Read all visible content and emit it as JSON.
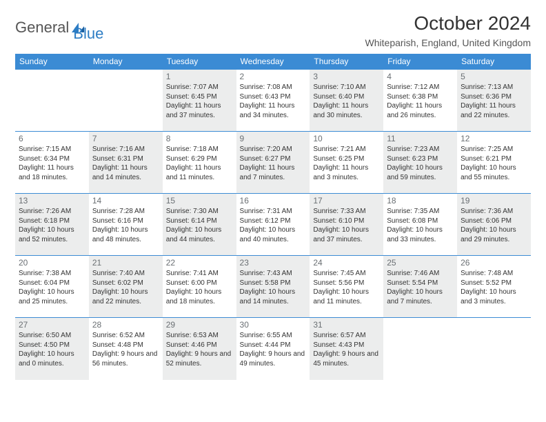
{
  "logo": {
    "text1": "General",
    "text2": "Blue"
  },
  "title": "October 2024",
  "location": "Whiteparish, England, United Kingdom",
  "colors": {
    "header_blue": "#3b8bd4",
    "shaded_bg": "#eceded",
    "logo_blue": "#2d7dc4"
  },
  "dayHeaders": [
    "Sunday",
    "Monday",
    "Tuesday",
    "Wednesday",
    "Thursday",
    "Friday",
    "Saturday"
  ],
  "weeks": [
    [
      {
        "empty": true
      },
      {
        "empty": true
      },
      {
        "num": "1",
        "shaded": true,
        "sunrise": "Sunrise: 7:07 AM",
        "sunset": "Sunset: 6:45 PM",
        "daylight": "Daylight: 11 hours and 37 minutes."
      },
      {
        "num": "2",
        "sunrise": "Sunrise: 7:08 AM",
        "sunset": "Sunset: 6:43 PM",
        "daylight": "Daylight: 11 hours and 34 minutes."
      },
      {
        "num": "3",
        "shaded": true,
        "sunrise": "Sunrise: 7:10 AM",
        "sunset": "Sunset: 6:40 PM",
        "daylight": "Daylight: 11 hours and 30 minutes."
      },
      {
        "num": "4",
        "sunrise": "Sunrise: 7:12 AM",
        "sunset": "Sunset: 6:38 PM",
        "daylight": "Daylight: 11 hours and 26 minutes."
      },
      {
        "num": "5",
        "shaded": true,
        "sunrise": "Sunrise: 7:13 AM",
        "sunset": "Sunset: 6:36 PM",
        "daylight": "Daylight: 11 hours and 22 minutes."
      }
    ],
    [
      {
        "num": "6",
        "sunrise": "Sunrise: 7:15 AM",
        "sunset": "Sunset: 6:34 PM",
        "daylight": "Daylight: 11 hours and 18 minutes."
      },
      {
        "num": "7",
        "shaded": true,
        "sunrise": "Sunrise: 7:16 AM",
        "sunset": "Sunset: 6:31 PM",
        "daylight": "Daylight: 11 hours and 14 minutes."
      },
      {
        "num": "8",
        "sunrise": "Sunrise: 7:18 AM",
        "sunset": "Sunset: 6:29 PM",
        "daylight": "Daylight: 11 hours and 11 minutes."
      },
      {
        "num": "9",
        "shaded": true,
        "sunrise": "Sunrise: 7:20 AM",
        "sunset": "Sunset: 6:27 PM",
        "daylight": "Daylight: 11 hours and 7 minutes."
      },
      {
        "num": "10",
        "sunrise": "Sunrise: 7:21 AM",
        "sunset": "Sunset: 6:25 PM",
        "daylight": "Daylight: 11 hours and 3 minutes."
      },
      {
        "num": "11",
        "shaded": true,
        "sunrise": "Sunrise: 7:23 AM",
        "sunset": "Sunset: 6:23 PM",
        "daylight": "Daylight: 10 hours and 59 minutes."
      },
      {
        "num": "12",
        "sunrise": "Sunrise: 7:25 AM",
        "sunset": "Sunset: 6:21 PM",
        "daylight": "Daylight: 10 hours and 55 minutes."
      }
    ],
    [
      {
        "num": "13",
        "shaded": true,
        "sunrise": "Sunrise: 7:26 AM",
        "sunset": "Sunset: 6:18 PM",
        "daylight": "Daylight: 10 hours and 52 minutes."
      },
      {
        "num": "14",
        "sunrise": "Sunrise: 7:28 AM",
        "sunset": "Sunset: 6:16 PM",
        "daylight": "Daylight: 10 hours and 48 minutes."
      },
      {
        "num": "15",
        "shaded": true,
        "sunrise": "Sunrise: 7:30 AM",
        "sunset": "Sunset: 6:14 PM",
        "daylight": "Daylight: 10 hours and 44 minutes."
      },
      {
        "num": "16",
        "sunrise": "Sunrise: 7:31 AM",
        "sunset": "Sunset: 6:12 PM",
        "daylight": "Daylight: 10 hours and 40 minutes."
      },
      {
        "num": "17",
        "shaded": true,
        "sunrise": "Sunrise: 7:33 AM",
        "sunset": "Sunset: 6:10 PM",
        "daylight": "Daylight: 10 hours and 37 minutes."
      },
      {
        "num": "18",
        "sunrise": "Sunrise: 7:35 AM",
        "sunset": "Sunset: 6:08 PM",
        "daylight": "Daylight: 10 hours and 33 minutes."
      },
      {
        "num": "19",
        "shaded": true,
        "sunrise": "Sunrise: 7:36 AM",
        "sunset": "Sunset: 6:06 PM",
        "daylight": "Daylight: 10 hours and 29 minutes."
      }
    ],
    [
      {
        "num": "20",
        "sunrise": "Sunrise: 7:38 AM",
        "sunset": "Sunset: 6:04 PM",
        "daylight": "Daylight: 10 hours and 25 minutes."
      },
      {
        "num": "21",
        "shaded": true,
        "sunrise": "Sunrise: 7:40 AM",
        "sunset": "Sunset: 6:02 PM",
        "daylight": "Daylight: 10 hours and 22 minutes."
      },
      {
        "num": "22",
        "sunrise": "Sunrise: 7:41 AM",
        "sunset": "Sunset: 6:00 PM",
        "daylight": "Daylight: 10 hours and 18 minutes."
      },
      {
        "num": "23",
        "shaded": true,
        "sunrise": "Sunrise: 7:43 AM",
        "sunset": "Sunset: 5:58 PM",
        "daylight": "Daylight: 10 hours and 14 minutes."
      },
      {
        "num": "24",
        "sunrise": "Sunrise: 7:45 AM",
        "sunset": "Sunset: 5:56 PM",
        "daylight": "Daylight: 10 hours and 11 minutes."
      },
      {
        "num": "25",
        "shaded": true,
        "sunrise": "Sunrise: 7:46 AM",
        "sunset": "Sunset: 5:54 PM",
        "daylight": "Daylight: 10 hours and 7 minutes."
      },
      {
        "num": "26",
        "sunrise": "Sunrise: 7:48 AM",
        "sunset": "Sunset: 5:52 PM",
        "daylight": "Daylight: 10 hours and 3 minutes."
      }
    ],
    [
      {
        "num": "27",
        "shaded": true,
        "sunrise": "Sunrise: 6:50 AM",
        "sunset": "Sunset: 4:50 PM",
        "daylight": "Daylight: 10 hours and 0 minutes."
      },
      {
        "num": "28",
        "sunrise": "Sunrise: 6:52 AM",
        "sunset": "Sunset: 4:48 PM",
        "daylight": "Daylight: 9 hours and 56 minutes."
      },
      {
        "num": "29",
        "shaded": true,
        "sunrise": "Sunrise: 6:53 AM",
        "sunset": "Sunset: 4:46 PM",
        "daylight": "Daylight: 9 hours and 52 minutes."
      },
      {
        "num": "30",
        "sunrise": "Sunrise: 6:55 AM",
        "sunset": "Sunset: 4:44 PM",
        "daylight": "Daylight: 9 hours and 49 minutes."
      },
      {
        "num": "31",
        "shaded": true,
        "sunrise": "Sunrise: 6:57 AM",
        "sunset": "Sunset: 4:43 PM",
        "daylight": "Daylight: 9 hours and 45 minutes."
      },
      {
        "empty": true
      },
      {
        "empty": true
      }
    ]
  ]
}
